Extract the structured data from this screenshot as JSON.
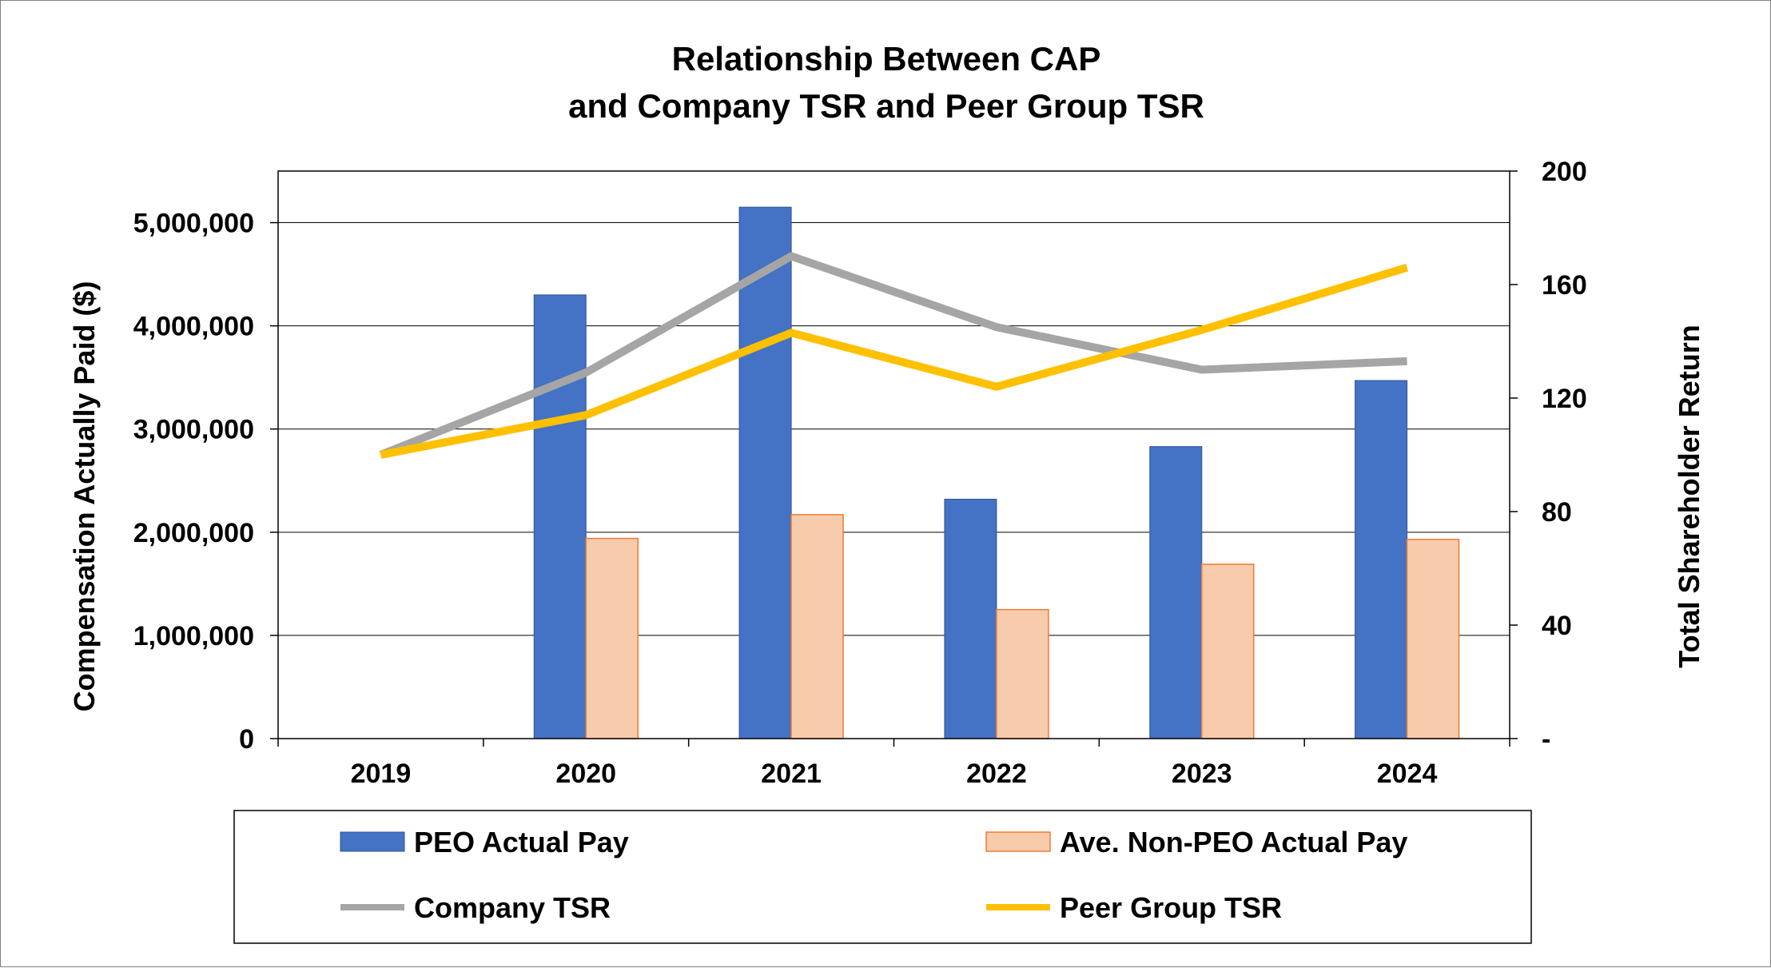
{
  "chart_data": {
    "type": "bar",
    "title": [
      "Relationship Between CAP",
      "and Company TSR and Peer Group TSR"
    ],
    "categories": [
      "2019",
      "2020",
      "2021",
      "2022",
      "2023",
      "2024"
    ],
    "ylabel": "Compensation Actually Paid ($)",
    "y2label": "Total Shareholder Return",
    "ylim": [
      0,
      5500000
    ],
    "y_ticks": [
      0,
      1000000,
      2000000,
      3000000,
      4000000,
      5000000
    ],
    "y_tick_labels": [
      "0",
      "1,000,000",
      "2,000,000",
      "3,000,000",
      "4,000,000",
      "5,000,000"
    ],
    "y2lim": [
      0,
      200
    ],
    "y2_ticks": [
      0,
      40,
      80,
      120,
      160,
      200
    ],
    "y2_tick_labels": [
      "-",
      "40",
      "80",
      "120",
      "160",
      "200"
    ],
    "grid": true,
    "legend_position": "bottom",
    "bar_series": [
      {
        "name": "PEO Actual Pay",
        "color": "#4472c4",
        "values": [
          null,
          4300000,
          5150000,
          2320000,
          2830000,
          3470000
        ]
      },
      {
        "name": "Ave. Non-PEO Actual Pay",
        "color": "#f8cbad",
        "values": [
          null,
          1940000,
          2170000,
          1250000,
          1690000,
          1930000
        ]
      }
    ],
    "line_series": [
      {
        "name": "Company TSR",
        "color": "#a5a5a5",
        "axis": "right",
        "values": [
          100,
          129,
          170,
          145,
          130,
          133
        ]
      },
      {
        "name": "Peer Group TSR",
        "color": "#ffc000",
        "axis": "right",
        "values": [
          100,
          114,
          143,
          124,
          144,
          166
        ]
      }
    ]
  }
}
